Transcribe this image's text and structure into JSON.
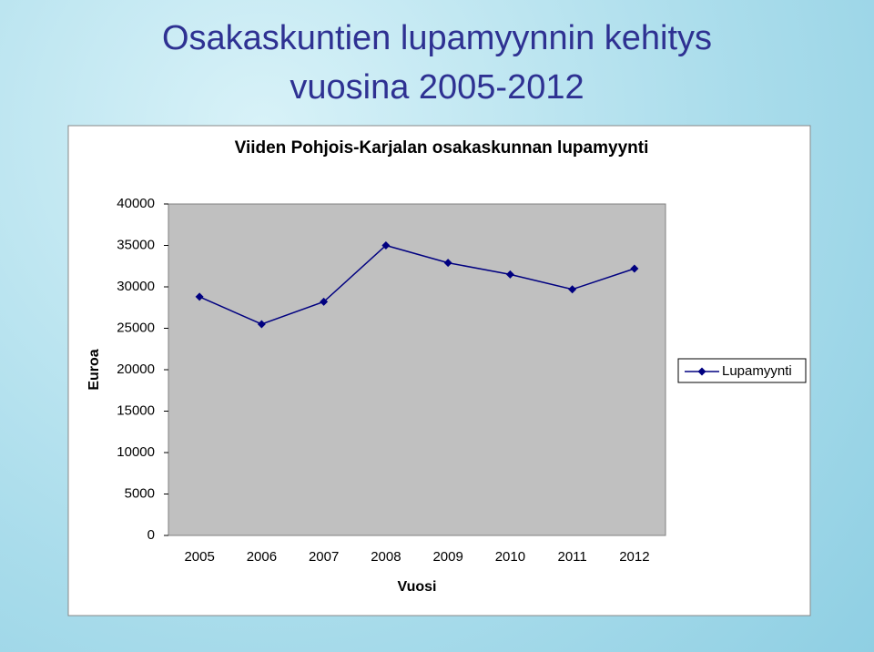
{
  "slide_title": [
    "Osakaskuntien lupamyynnin kehitys",
    "vuosina 2005-2012"
  ],
  "chart_data": {
    "type": "line",
    "title": "Viiden Pohjois-Karjalan osakaskunnan lupamyynti",
    "x_label": "Vuosi",
    "y_label": "Euroa",
    "categories": [
      "2005",
      "2006",
      "2007",
      "2008",
      "2009",
      "2010",
      "2011",
      "2012"
    ],
    "series": [
      {
        "name": "Lupamyynti",
        "color": "#000080",
        "values": [
          28800,
          25500,
          28200,
          35000,
          32900,
          31500,
          29700,
          32200
        ]
      }
    ],
    "ylim": [
      0,
      40000
    ],
    "yticks": [
      0,
      5000,
      10000,
      15000,
      20000,
      25000,
      30000,
      35000,
      40000
    ],
    "grid": false,
    "legend": "right"
  }
}
